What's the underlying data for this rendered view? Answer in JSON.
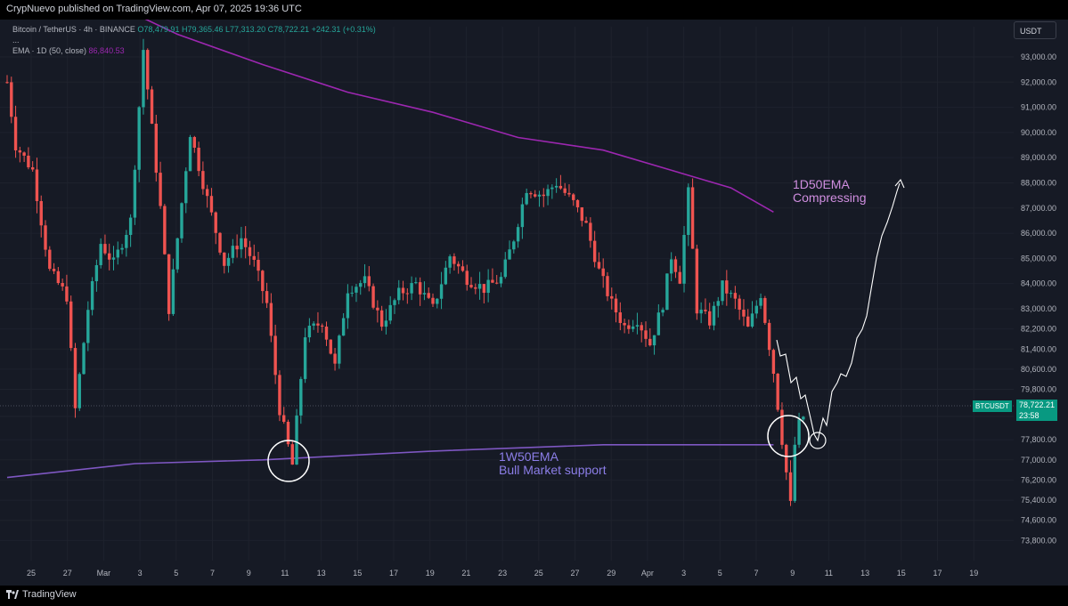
{
  "header": {
    "publisher_text": "CrypNuevo published on TradingView.com, Apr 07, 2025 19:36 UTC"
  },
  "legend": {
    "symbol": "Bitcoin / TetherUS · 4h · BINANCE",
    "open": "O78,479.91",
    "high": "H79,365.46",
    "low": "L77,313.20",
    "close": "C78,722.21",
    "change": "+242.31 (+0.31%)",
    "ellipsis": "...",
    "ema_label": "EMA · 1D (50, close)",
    "ema_value": "86,840.53"
  },
  "currency_button": "USDT",
  "price_tag": {
    "symbol": "BTCUSDT",
    "price": "78,722.21",
    "countdown": "23:58"
  },
  "annotations": {
    "ema_1d_line1": "1D50EMA",
    "ema_1d_line2": "Compressing",
    "ema_1w_line1": "1W50EMA",
    "ema_1w_line2": "Bull Market support"
  },
  "footer": {
    "brand": "TradingView"
  },
  "colors": {
    "up": "#26a69a",
    "down": "#ef5350",
    "ema1d": "#9c27b0",
    "ema1w": "#7e57c2",
    "background": "#161a25"
  },
  "chart_data": {
    "type": "candlestick",
    "title": "Bitcoin / TetherUS · 4h · BINANCE",
    "interval": "4h",
    "ylim": [
      73000,
      94200
    ],
    "y_ticks": [
      "93,000.00",
      "92,000.00",
      "91,000.00",
      "90,000.00",
      "89,000.00",
      "88,000.00",
      "87,000.00",
      "86,000.00",
      "85,000.00",
      "84,000.00",
      "83,000.00",
      "82,200.00",
      "81,400.00",
      "80,600.00",
      "79,800.00",
      "78,722.21",
      "77,800.00",
      "77,000.00",
      "76,200.00",
      "75,400.00",
      "74,600.00",
      "73,800.00"
    ],
    "x_ticks": [
      "25",
      "27",
      "Mar",
      "3",
      "5",
      "7",
      "9",
      "11",
      "13",
      "15",
      "17",
      "19",
      "21",
      "23",
      "25",
      "27",
      "29",
      "Apr",
      "3",
      "5",
      "7",
      "9",
      "11",
      "13",
      "15",
      "17",
      "19"
    ],
    "anchors": [
      {
        "i": 0,
        "p": 92000
      },
      {
        "i": 2,
        "p": 89500
      },
      {
        "i": 6,
        "p": 88500
      },
      {
        "i": 10,
        "p": 84500
      },
      {
        "i": 14,
        "p": 83500
      },
      {
        "i": 16,
        "p": 79000
      },
      {
        "i": 19,
        "p": 83000
      },
      {
        "i": 22,
        "p": 85600
      },
      {
        "i": 25,
        "p": 84800
      },
      {
        "i": 29,
        "p": 86500
      },
      {
        "i": 32,
        "p": 93300
      },
      {
        "i": 36,
        "p": 87000
      },
      {
        "i": 38,
        "p": 83000
      },
      {
        "i": 43,
        "p": 90000
      },
      {
        "i": 46,
        "p": 88000
      },
      {
        "i": 51,
        "p": 84800
      },
      {
        "i": 55,
        "p": 85800
      },
      {
        "i": 58,
        "p": 84800
      },
      {
        "i": 61,
        "p": 83200
      },
      {
        "i": 64,
        "p": 79000
      },
      {
        "i": 67,
        "p": 76800
      },
      {
        "i": 70,
        "p": 82000
      },
      {
        "i": 74,
        "p": 82500
      },
      {
        "i": 77,
        "p": 80700
      },
      {
        "i": 80,
        "p": 83800
      },
      {
        "i": 84,
        "p": 84100
      },
      {
        "i": 88,
        "p": 82400
      },
      {
        "i": 92,
        "p": 83600
      },
      {
        "i": 96,
        "p": 84000
      },
      {
        "i": 100,
        "p": 83000
      },
      {
        "i": 104,
        "p": 85100
      },
      {
        "i": 108,
        "p": 84200
      },
      {
        "i": 112,
        "p": 83800
      },
      {
        "i": 116,
        "p": 84200
      },
      {
        "i": 119,
        "p": 85800
      },
      {
        "i": 122,
        "p": 87800
      },
      {
        "i": 126,
        "p": 87500
      },
      {
        "i": 129,
        "p": 88000
      },
      {
        "i": 133,
        "p": 87200
      },
      {
        "i": 136,
        "p": 86300
      },
      {
        "i": 139,
        "p": 84500
      },
      {
        "i": 142,
        "p": 83200
      },
      {
        "i": 145,
        "p": 82300
      },
      {
        "i": 148,
        "p": 82600
      },
      {
        "i": 151,
        "p": 81600
      },
      {
        "i": 154,
        "p": 83200
      },
      {
        "i": 156,
        "p": 85100
      },
      {
        "i": 158,
        "p": 84200
      },
      {
        "i": 160,
        "p": 87600
      },
      {
        "i": 162,
        "p": 83000
      },
      {
        "i": 165,
        "p": 82500
      },
      {
        "i": 168,
        "p": 83900
      },
      {
        "i": 171,
        "p": 83300
      },
      {
        "i": 174,
        "p": 82200
      },
      {
        "i": 177,
        "p": 83600
      },
      {
        "i": 180,
        "p": 80500
      },
      {
        "i": 182,
        "p": 77800
      },
      {
        "i": 184,
        "p": 75200
      },
      {
        "i": 185,
        "p": 77600
      },
      {
        "i": 186,
        "p": 78400
      },
      {
        "i": 187,
        "p": 78720
      }
    ],
    "ema_1d_50": [
      {
        "i": 0,
        "p": 96000
      },
      {
        "i": 20,
        "p": 95500
      },
      {
        "i": 40,
        "p": 93900
      },
      {
        "i": 60,
        "p": 92700
      },
      {
        "i": 80,
        "p": 91600
      },
      {
        "i": 100,
        "p": 90800
      },
      {
        "i": 120,
        "p": 89800
      },
      {
        "i": 140,
        "p": 89300
      },
      {
        "i": 160,
        "p": 88300
      },
      {
        "i": 170,
        "p": 87800
      },
      {
        "i": 180,
        "p": 86840
      }
    ],
    "ema_1w_50": [
      {
        "i": 0,
        "p": 76300
      },
      {
        "i": 30,
        "p": 76850
      },
      {
        "i": 60,
        "p": 77000
      },
      {
        "i": 100,
        "p": 77350
      },
      {
        "i": 140,
        "p": 77600
      },
      {
        "i": 180,
        "p": 77600
      }
    ]
  }
}
